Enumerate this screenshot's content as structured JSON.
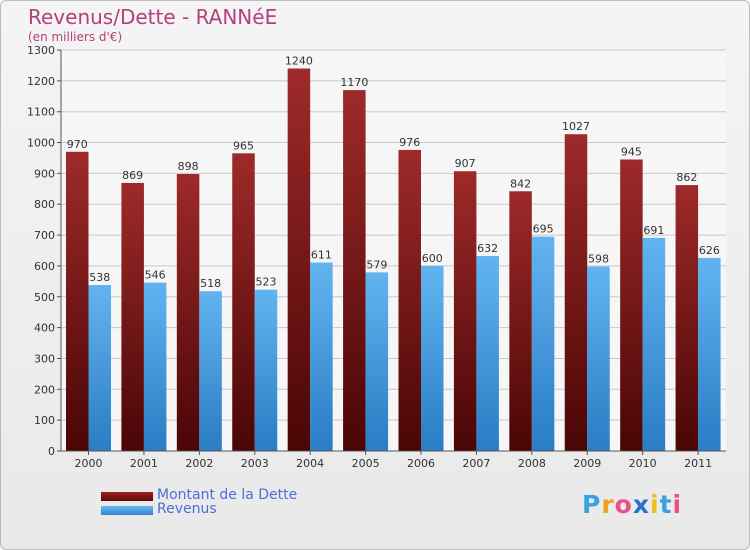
{
  "header": {
    "title": "Revenus/Dette - RANNéE",
    "subtitle": "(en milliers d'€)"
  },
  "chart_data": {
    "type": "bar",
    "categories": [
      "2000",
      "2001",
      "2002",
      "2003",
      "2004",
      "2005",
      "2006",
      "2007",
      "2008",
      "2009",
      "2010",
      "2011"
    ],
    "series": [
      {
        "name": "Montant de la Dette",
        "values": [
          970,
          869,
          898,
          965,
          1240,
          1170,
          976,
          907,
          842,
          1027,
          945,
          862
        ],
        "color": "#7a1414"
      },
      {
        "name": "Revenus",
        "values": [
          538,
          546,
          518,
          523,
          611,
          579,
          600,
          632,
          695,
          598,
          691,
          626
        ],
        "color": "#4aa3e6"
      }
    ],
    "ylim": [
      0,
      1300
    ],
    "yticks": [
      0,
      100,
      200,
      300,
      400,
      500,
      600,
      700,
      800,
      900,
      1000,
      1100,
      1200,
      1300
    ],
    "grid": true,
    "legend_position": "bottom-left",
    "data_labels": true
  },
  "logo": {
    "letters": [
      "P",
      "r",
      "o",
      "x",
      "i",
      "t",
      "i"
    ],
    "colors": [
      "#3aa0e0",
      "#f0a020",
      "#e8508a",
      "#2a70d0",
      "#f0c020",
      "#3aa0e0",
      "#e8508a"
    ]
  }
}
